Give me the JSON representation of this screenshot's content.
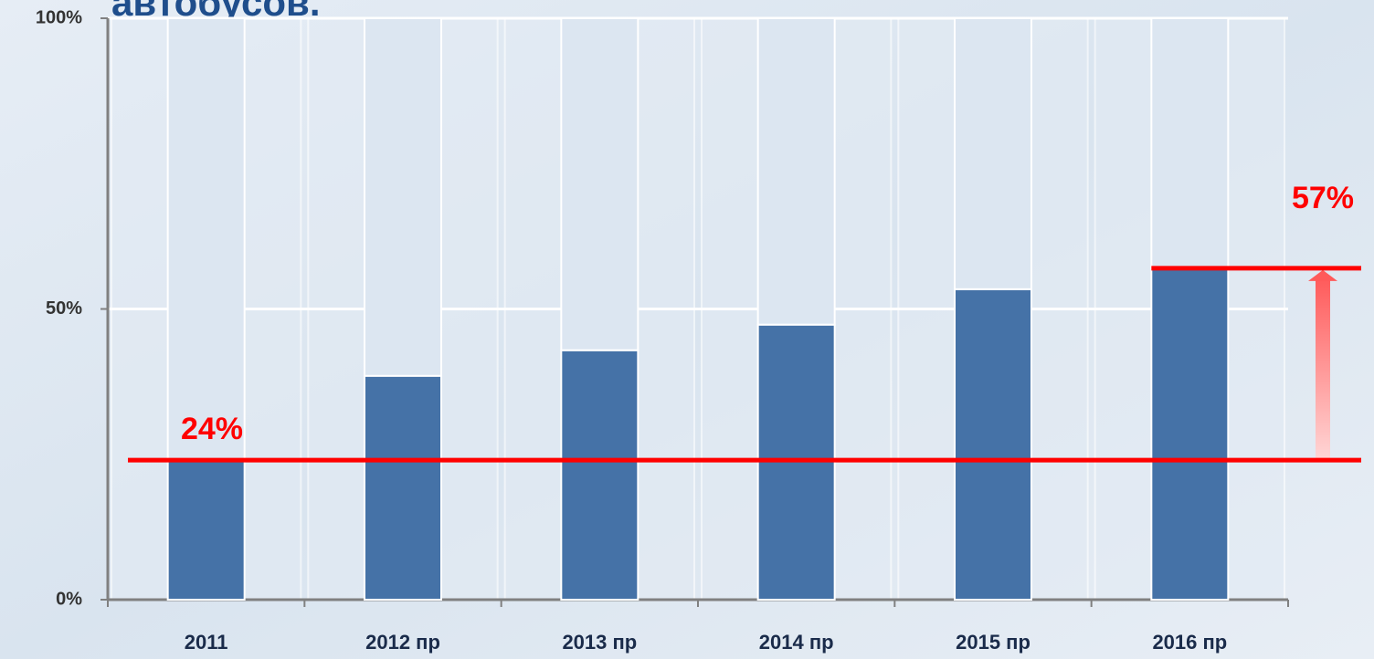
{
  "chart_data": {
    "type": "stacked_bar",
    "title": "автобусов.",
    "categories": [
      "2011",
      "2012 пр",
      "2013 пр",
      "2014 пр",
      "2015 пр",
      "2016 пр"
    ],
    "series": [
      {
        "color": "#4572a7",
        "values": [
          24,
          38.5,
          42.9,
          47.3,
          53.4,
          57
        ]
      },
      {
        "color": "#dce6f1",
        "values": [
          76,
          61.5,
          57.1,
          52.7,
          46.6,
          43
        ]
      }
    ],
    "ylim": [
      0,
      100
    ],
    "yticks": [
      {
        "value": 0,
        "label": "0%"
      },
      {
        "value": 50,
        "label": "50%"
      },
      {
        "value": 100,
        "label": "100%"
      }
    ],
    "reference_lines": [
      {
        "value": 24,
        "label": "24%",
        "color": "#ff0000"
      },
      {
        "value": 57,
        "label": "57%",
        "color": "#ff0000"
      }
    ]
  }
}
